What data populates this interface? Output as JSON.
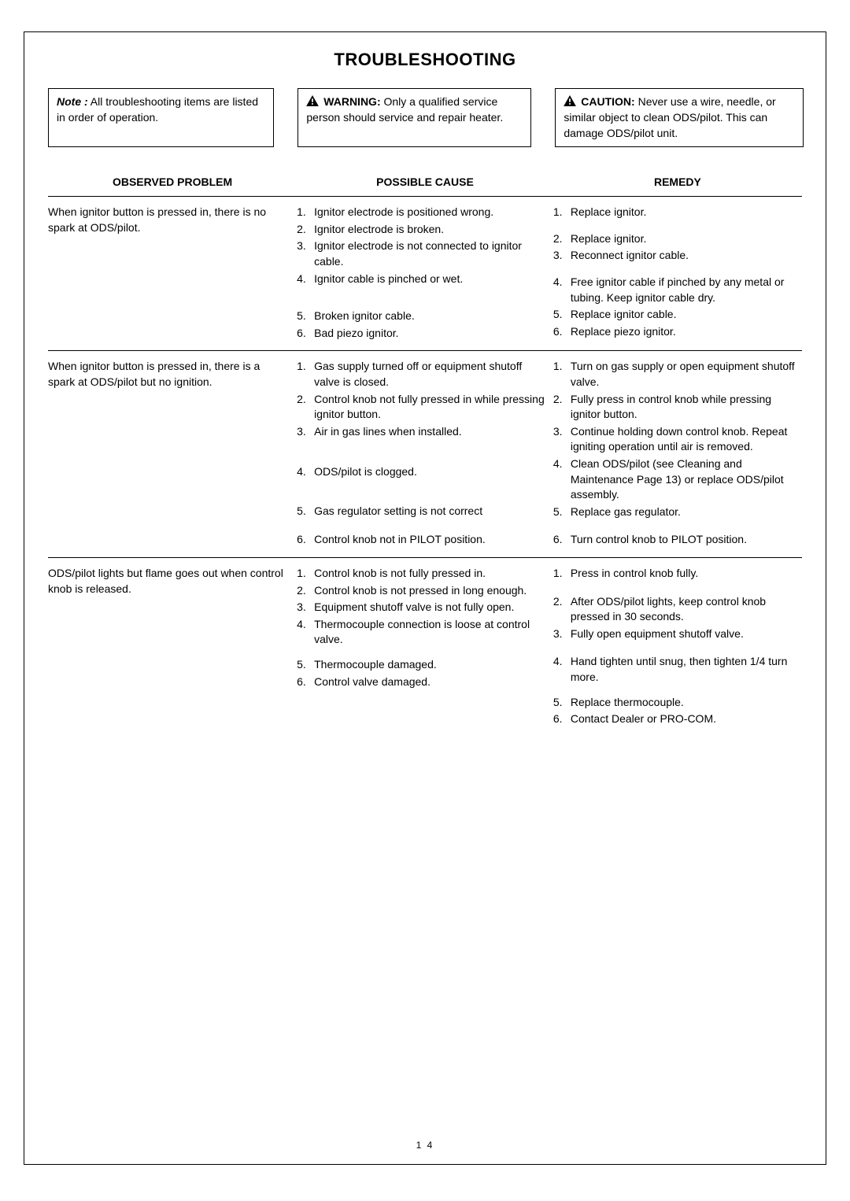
{
  "title": "TROUBLESHOOTING",
  "note_box": {
    "label": "Note :",
    "text": "All troubleshooting items are listed in order of operation."
  },
  "warning_box": {
    "label": "WARNING:",
    "text": "Only a qualified service person should service and repair heater."
  },
  "caution_box": {
    "label": "CAUTION:",
    "text": "Never use a wire, needle, or similar object to clean ODS/pilot. This can damage ODS/pilot unit."
  },
  "headers": {
    "problem": "OBSERVED PROBLEM",
    "cause": "POSSIBLE CAUSE",
    "remedy": "REMEDY"
  },
  "rows": [
    {
      "problem": "When ignitor button is pressed in, there is no spark at ODS/pilot.",
      "causes": [
        "Ignitor electrode is positioned wrong.",
        "Ignitor electrode is broken.",
        "Ignitor electrode is not connected to ignitor cable.",
        "Ignitor cable is pinched or wet.",
        "Broken ignitor cable.",
        "Bad piezo ignitor."
      ],
      "remedies": [
        "Replace ignitor.",
        "Replace ignitor.",
        "Reconnect ignitor cable.",
        "Free ignitor cable if pinched by any metal or tubing. Keep ignitor cable dry.",
        "Replace ignitor cable.",
        "Replace piezo ignitor."
      ],
      "cause_spacing": [
        0,
        0,
        0,
        0,
        28,
        0
      ],
      "remedy_spacing": [
        0,
        14,
        0,
        14,
        0,
        0
      ]
    },
    {
      "problem": "When ignitor button is pressed in, there is a spark at ODS/pilot but no ignition.",
      "causes": [
        "Gas supply turned off or equipment shutoff valve is closed.",
        "Control knob not fully pressed in while pressing ignitor button.",
        "Air in gas lines when installed.",
        "ODS/pilot is clogged.",
        "Gas regulator setting is not correct",
        "Control knob not in PILOT position."
      ],
      "remedies": [
        "Turn on gas supply or open equipment shutoff valve.",
        "Fully press in control knob while pressing ignitor button.",
        "Continue holding down control knob. Repeat igniting operation until air is removed.",
        "Clean ODS/pilot (see Cleaning and Maintenance Page 13) or replace ODS/pilot assembly.",
        "Replace gas regulator.",
        "Turn control knob to PILOT position."
      ],
      "cause_spacing": [
        0,
        0,
        0,
        32,
        30,
        16
      ],
      "remedy_spacing": [
        0,
        0,
        0,
        0,
        0,
        16
      ]
    },
    {
      "problem": "ODS/pilot lights but flame goes out when control knob is released.",
      "causes": [
        "Control knob is not fully pressed in.",
        "Control knob is not pressed in long enough.",
        "Equipment shutoff valve is not fully open.",
        "Thermocouple connection is loose at control valve.",
        "Thermocouple damaged.",
        "Control valve damaged."
      ],
      "remedies": [
        "Press in control knob fully.",
        "After ODS/pilot lights, keep control knob pressed in 30 seconds.",
        "Fully open equipment shutoff valve.",
        "Hand tighten until snug, then tighten 1/4 turn more.",
        "Replace thermocouple.",
        "Contact Dealer or PRO-COM."
      ],
      "cause_spacing": [
        0,
        0,
        0,
        0,
        12,
        0
      ],
      "remedy_spacing": [
        0,
        16,
        0,
        16,
        12,
        0
      ]
    }
  ],
  "page_number": "1 4"
}
